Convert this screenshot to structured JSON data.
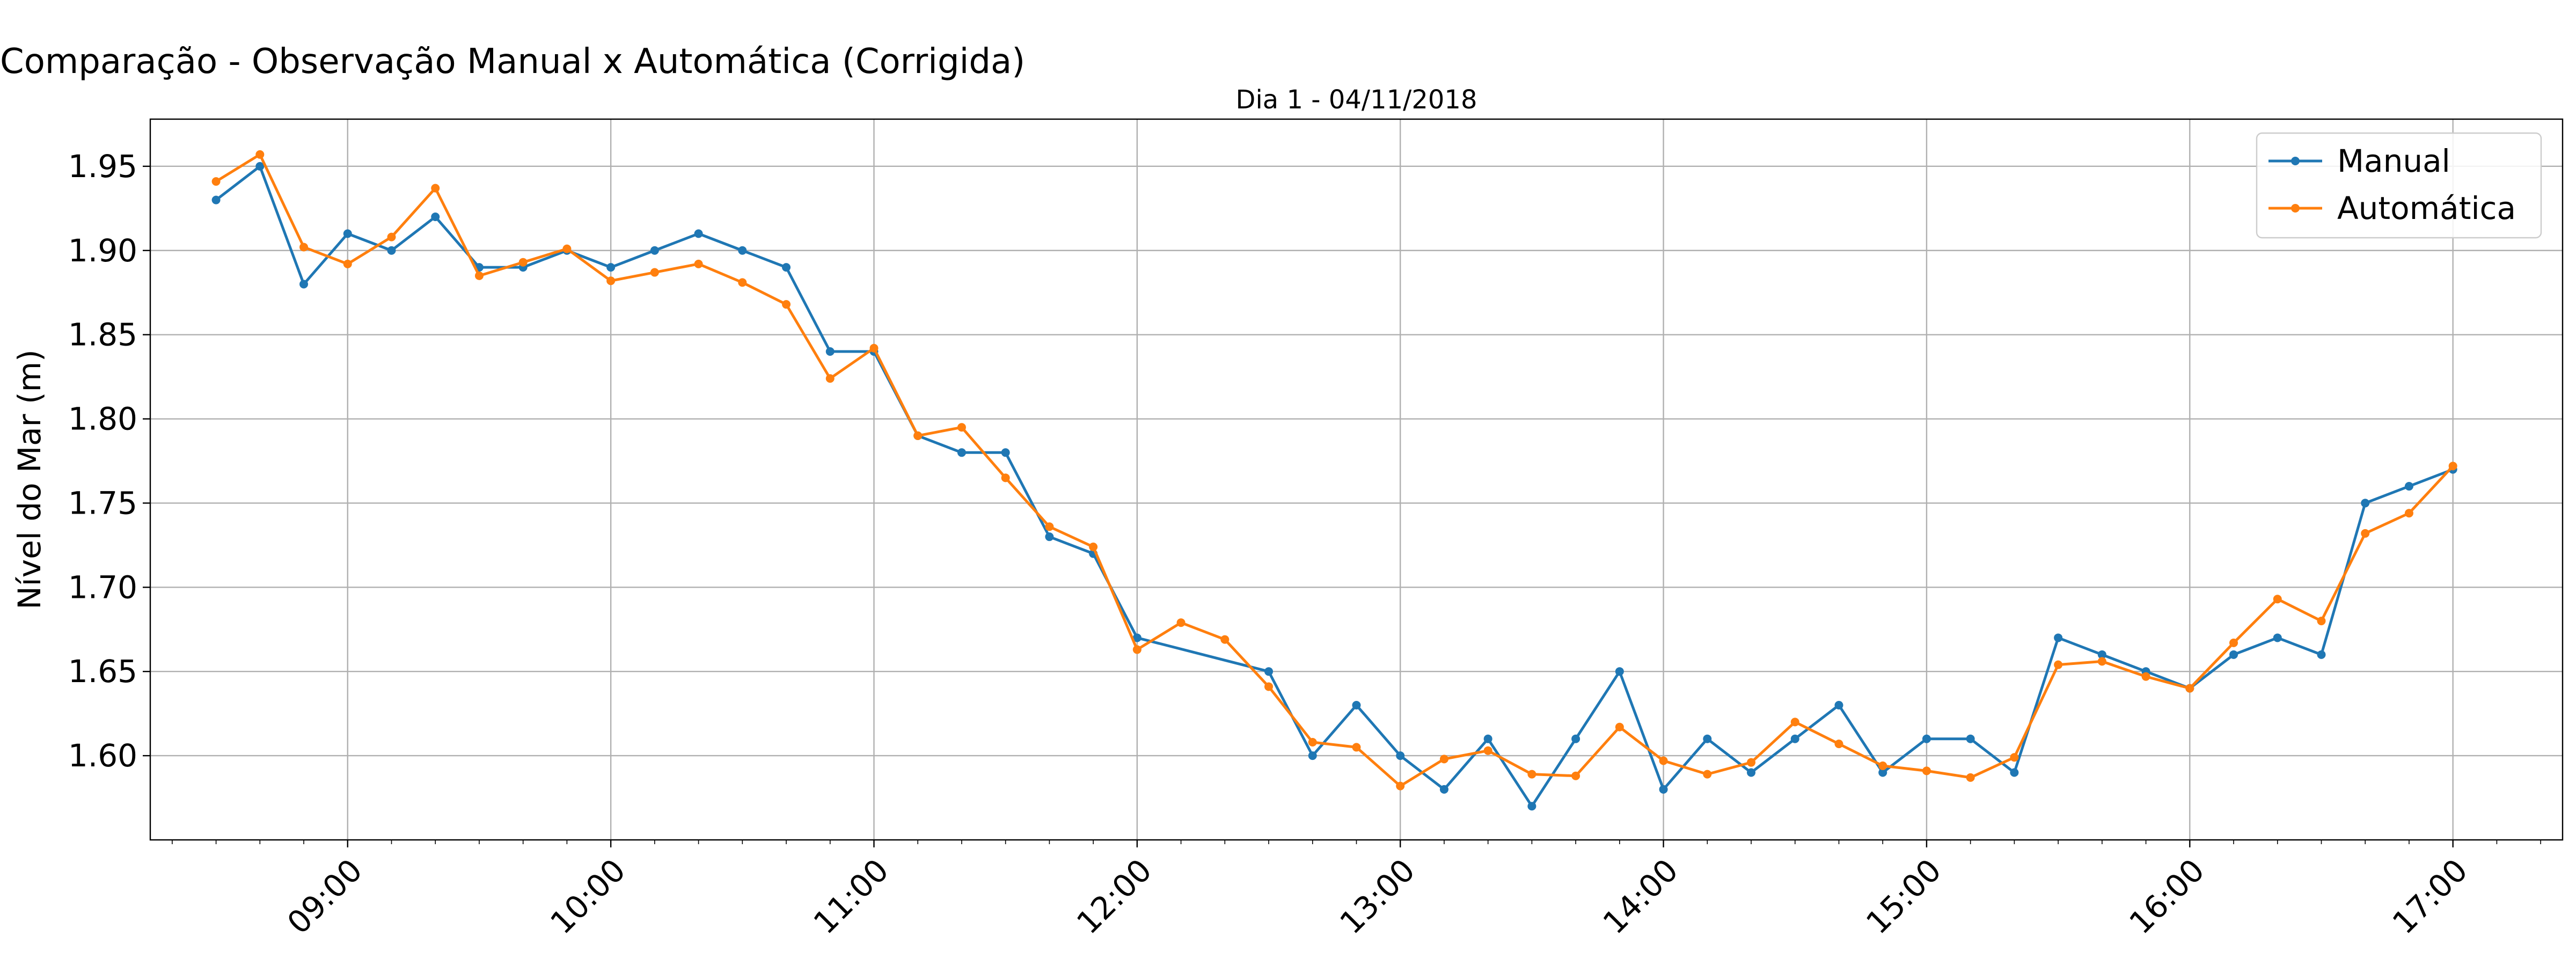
{
  "figure_title": "Comparação - Observação Manual x Automática (Corrigida)",
  "colors": {
    "manual": "#1f77b4",
    "automatica": "#ff7f0e",
    "grid": "#b0b0b0"
  },
  "chart_data": {
    "type": "line",
    "title": "Dia 1 - 04/11/2018",
    "xlabel": "",
    "ylabel": "Nível do Mar (m)",
    "x_tick_labels": [
      "09:00",
      "10:00",
      "11:00",
      "12:00",
      "13:00",
      "14:00",
      "15:00",
      "16:00",
      "17:00"
    ],
    "y_tick_labels": [
      "1.60",
      "1.65",
      "1.70",
      "1.75",
      "1.80",
      "1.85",
      "1.90",
      "1.95"
    ],
    "xlim": [
      "08:15",
      "17:25"
    ],
    "ylim": [
      1.55,
      1.978
    ],
    "grid": true,
    "legend_position": "upper right",
    "series": [
      {
        "name": "Manual",
        "color": "#1f77b4",
        "x": [
          "08:30",
          "08:40",
          "08:50",
          "09:00",
          "09:10",
          "09:20",
          "09:30",
          "09:40",
          "09:50",
          "10:00",
          "10:10",
          "10:20",
          "10:30",
          "10:40",
          "10:50",
          "11:00",
          "11:10",
          "11:20",
          "11:30",
          "11:40",
          "11:50",
          "12:00",
          "12:30",
          "12:40",
          "12:50",
          "13:00",
          "13:10",
          "13:20",
          "13:30",
          "13:40",
          "13:50",
          "14:00",
          "14:10",
          "14:20",
          "14:30",
          "14:40",
          "14:50",
          "15:00",
          "15:10",
          "15:20",
          "15:30",
          "15:40",
          "15:50",
          "16:00",
          "16:10",
          "16:20",
          "16:30",
          "16:40",
          "16:50",
          "17:00"
        ],
        "values": [
          1.93,
          1.95,
          1.88,
          1.91,
          1.9,
          1.92,
          1.89,
          1.89,
          1.9,
          1.89,
          1.9,
          1.91,
          1.9,
          1.89,
          1.84,
          1.84,
          1.79,
          1.78,
          1.78,
          1.73,
          1.72,
          1.67,
          1.65,
          1.6,
          1.63,
          1.6,
          1.58,
          1.61,
          1.57,
          1.61,
          1.65,
          1.58,
          1.61,
          1.59,
          1.61,
          1.63,
          1.59,
          1.61,
          1.61,
          1.59,
          1.67,
          1.66,
          1.65,
          1.64,
          1.66,
          1.67,
          1.66,
          1.75,
          1.76,
          1.77
        ]
      },
      {
        "name": "Automática",
        "color": "#ff7f0e",
        "x": [
          "08:30",
          "08:40",
          "08:50",
          "09:00",
          "09:10",
          "09:20",
          "09:30",
          "09:40",
          "09:50",
          "10:00",
          "10:10",
          "10:20",
          "10:30",
          "10:40",
          "10:50",
          "11:00",
          "11:10",
          "11:20",
          "11:30",
          "11:40",
          "11:50",
          "12:00",
          "12:10",
          "12:20",
          "12:30",
          "12:40",
          "12:50",
          "13:00",
          "13:10",
          "13:20",
          "13:30",
          "13:40",
          "13:50",
          "14:00",
          "14:10",
          "14:20",
          "14:30",
          "14:40",
          "14:50",
          "15:00",
          "15:10",
          "15:20",
          "15:30",
          "15:40",
          "15:50",
          "16:00",
          "16:10",
          "16:20",
          "16:30",
          "16:40",
          "16:50",
          "17:00"
        ],
        "values": [
          1.941,
          1.957,
          1.902,
          1.892,
          1.908,
          1.937,
          1.885,
          1.893,
          1.901,
          1.882,
          1.887,
          1.892,
          1.881,
          1.868,
          1.824,
          1.842,
          1.79,
          1.795,
          1.765,
          1.736,
          1.724,
          1.663,
          1.679,
          1.669,
          1.641,
          1.608,
          1.605,
          1.582,
          1.598,
          1.603,
          1.589,
          1.588,
          1.617,
          1.597,
          1.589,
          1.596,
          1.62,
          1.607,
          1.594,
          1.591,
          1.587,
          1.599,
          1.654,
          1.656,
          1.647,
          1.64,
          1.667,
          1.693,
          1.68,
          1.732,
          1.744,
          1.772
        ]
      }
    ]
  }
}
